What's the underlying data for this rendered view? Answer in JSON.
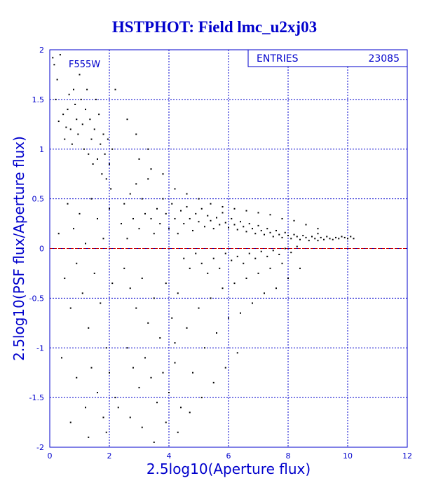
{
  "colors": {
    "axis": "#0000cc",
    "points": "#000000",
    "reference_line": "#cc0000",
    "background": "#ffffff"
  },
  "chart_data": {
    "type": "scatter",
    "title": "HSTPHOT: Field lmc_u2xj03",
    "xlabel": "2.5log10(Aperture flux)",
    "ylabel": "2.5log10(PSF flux/Aperture flux)",
    "xlim": [
      0,
      12
    ],
    "ylim": [
      -2,
      2
    ],
    "x_ticks": [
      "0",
      "2",
      "4",
      "6",
      "8",
      "10",
      "12"
    ],
    "y_ticks": [
      "-2",
      "-1.5",
      "-1",
      "-0.5",
      "0",
      "0.5",
      "1",
      "1.5",
      "2"
    ],
    "grid": true,
    "annotation": "F555W",
    "stats_box": {
      "label": "ENTRIES",
      "value": "23085"
    },
    "reference_line_y": 0,
    "series": [
      {
        "points": [
          [
            0.1,
            1.92
          ],
          [
            0.15,
            1.85
          ],
          [
            0.2,
            1.5
          ],
          [
            0.25,
            1.7
          ],
          [
            0.3,
            1.28
          ],
          [
            0.35,
            1.95
          ],
          [
            0.45,
            1.35
          ],
          [
            0.5,
            1.1
          ],
          [
            0.55,
            1.22
          ],
          [
            0.6,
            1.4
          ],
          [
            0.65,
            1.55
          ],
          [
            0.7,
            1.2
          ],
          [
            0.75,
            1.05
          ],
          [
            0.8,
            1.6
          ],
          [
            0.85,
            1.45
          ],
          [
            0.9,
            1.3
          ],
          [
            0.95,
            1.15
          ],
          [
            1.0,
            1.75
          ],
          [
            1.05,
            1.5
          ],
          [
            1.1,
            1.25
          ],
          [
            1.15,
            1.0
          ],
          [
            1.2,
            1.4
          ],
          [
            1.25,
            1.6
          ],
          [
            1.3,
            0.95
          ],
          [
            1.35,
            1.3
          ],
          [
            1.4,
            1.1
          ],
          [
            1.45,
            0.85
          ],
          [
            1.5,
            1.2
          ],
          [
            1.55,
            1.5
          ],
          [
            1.6,
            0.9
          ],
          [
            1.65,
            1.35
          ],
          [
            1.7,
            1.05
          ],
          [
            1.75,
            0.75
          ],
          [
            1.8,
            1.15
          ],
          [
            1.85,
            0.95
          ],
          [
            1.9,
            0.7
          ],
          [
            1.95,
            1.1
          ],
          [
            2.0,
            0.85
          ],
          [
            2.05,
            0.6
          ],
          [
            2.1,
            1.0
          ],
          [
            0.3,
            0.15
          ],
          [
            0.5,
            -0.3
          ],
          [
            0.6,
            0.45
          ],
          [
            0.7,
            -0.6
          ],
          [
            0.8,
            0.2
          ],
          [
            0.9,
            -0.15
          ],
          [
            1.0,
            0.35
          ],
          [
            1.1,
            -0.45
          ],
          [
            1.2,
            0.05
          ],
          [
            1.3,
            -0.8
          ],
          [
            1.4,
            0.5
          ],
          [
            1.5,
            -0.25
          ],
          [
            1.6,
            0.3
          ],
          [
            1.7,
            -0.55
          ],
          [
            1.8,
            0.1
          ],
          [
            1.9,
            -1.0
          ],
          [
            2.0,
            0.4
          ],
          [
            2.1,
            -0.35
          ],
          [
            0.4,
            -1.1
          ],
          [
            0.9,
            -1.3
          ],
          [
            1.2,
            -1.6
          ],
          [
            1.4,
            -1.2
          ],
          [
            1.6,
            -1.45
          ],
          [
            1.8,
            -1.7
          ],
          [
            2.0,
            -1.25
          ],
          [
            2.2,
            -1.5
          ],
          [
            0.7,
            -1.75
          ],
          [
            1.3,
            -1.9
          ],
          [
            1.9,
            -1.85
          ],
          [
            2.3,
            -1.6
          ],
          [
            2.4,
            0.25
          ],
          [
            2.5,
            0.45
          ],
          [
            2.6,
            0.1
          ],
          [
            2.7,
            0.55
          ],
          [
            2.8,
            0.3
          ],
          [
            2.9,
            0.65
          ],
          [
            3.0,
            0.2
          ],
          [
            3.1,
            0.5
          ],
          [
            3.2,
            0.35
          ],
          [
            3.3,
            0.7
          ],
          [
            2.5,
            -0.2
          ],
          [
            2.7,
            -0.4
          ],
          [
            2.9,
            -0.6
          ],
          [
            3.1,
            -0.3
          ],
          [
            3.3,
            -0.75
          ],
          [
            3.5,
            -0.5
          ],
          [
            3.7,
            -0.9
          ],
          [
            3.9,
            -0.35
          ],
          [
            4.1,
            -0.7
          ],
          [
            4.3,
            -0.45
          ],
          [
            2.6,
            -1.0
          ],
          [
            2.8,
            -1.2
          ],
          [
            3.0,
            -1.4
          ],
          [
            3.2,
            -1.1
          ],
          [
            3.4,
            -1.3
          ],
          [
            3.6,
            -1.55
          ],
          [
            3.8,
            -1.25
          ],
          [
            4.0,
            -1.45
          ],
          [
            4.2,
            -1.15
          ],
          [
            4.4,
            -1.6
          ],
          [
            2.7,
            -1.7
          ],
          [
            3.1,
            -1.8
          ],
          [
            3.5,
            -1.95
          ],
          [
            3.9,
            -1.75
          ],
          [
            4.3,
            -1.85
          ],
          [
            4.7,
            -1.65
          ],
          [
            5.1,
            -1.5
          ],
          [
            5.5,
            -1.35
          ],
          [
            5.9,
            -1.2
          ],
          [
            6.3,
            -1.05
          ],
          [
            3.4,
            0.3
          ],
          [
            3.5,
            0.15
          ],
          [
            3.6,
            0.4
          ],
          [
            3.7,
            0.25
          ],
          [
            3.8,
            0.5
          ],
          [
            3.9,
            0.35
          ],
          [
            4.0,
            0.2
          ],
          [
            4.1,
            0.45
          ],
          [
            4.2,
            0.3
          ],
          [
            4.3,
            0.15
          ],
          [
            4.4,
            0.38
          ],
          [
            4.5,
            0.25
          ],
          [
            4.6,
            0.42
          ],
          [
            4.7,
            0.3
          ],
          [
            4.8,
            0.18
          ],
          [
            4.9,
            0.35
          ],
          [
            5.0,
            0.27
          ],
          [
            5.1,
            0.4
          ],
          [
            5.2,
            0.22
          ],
          [
            5.3,
            0.33
          ],
          [
            5.4,
            0.28
          ],
          [
            5.5,
            0.2
          ],
          [
            5.6,
            0.31
          ],
          [
            5.7,
            0.24
          ],
          [
            5.8,
            0.36
          ],
          [
            5.9,
            0.26
          ],
          [
            6.0,
            0.21
          ],
          [
            6.1,
            0.3
          ],
          [
            6.2,
            0.24
          ],
          [
            6.3,
            0.19
          ],
          [
            6.4,
            0.27
          ],
          [
            6.5,
            0.22
          ],
          [
            6.6,
            0.17
          ],
          [
            6.7,
            0.25
          ],
          [
            6.8,
            0.2
          ],
          [
            6.9,
            0.15
          ],
          [
            7.0,
            0.23
          ],
          [
            7.1,
            0.18
          ],
          [
            7.2,
            0.14
          ],
          [
            7.3,
            0.2
          ],
          [
            7.4,
            0.16
          ],
          [
            7.5,
            0.12
          ],
          [
            7.6,
            0.18
          ],
          [
            7.7,
            0.14
          ],
          [
            7.8,
            0.11
          ],
          [
            7.9,
            0.16
          ],
          [
            8.0,
            0.13
          ],
          [
            8.1,
            0.1
          ],
          [
            8.2,
            0.14
          ],
          [
            8.3,
            0.12
          ],
          [
            8.4,
            0.09
          ],
          [
            8.5,
            0.13
          ],
          [
            8.6,
            0.11
          ],
          [
            8.7,
            0.08
          ],
          [
            8.8,
            0.12
          ],
          [
            8.9,
            0.1
          ],
          [
            9.0,
            0.08
          ],
          [
            9.1,
            0.11
          ],
          [
            9.2,
            0.09
          ],
          [
            9.3,
            0.12
          ],
          [
            9.4,
            0.1
          ],
          [
            9.5,
            0.09
          ],
          [
            9.6,
            0.11
          ],
          [
            9.7,
            0.1
          ],
          [
            9.8,
            0.12
          ],
          [
            9.9,
            0.11
          ],
          [
            10.0,
            0.1
          ],
          [
            10.1,
            0.12
          ],
          [
            10.2,
            0.1
          ],
          [
            9.0,
            0.15
          ],
          [
            4.5,
            -0.1
          ],
          [
            4.7,
            -0.2
          ],
          [
            4.9,
            -0.05
          ],
          [
            5.1,
            -0.15
          ],
          [
            5.3,
            -0.25
          ],
          [
            5.5,
            -0.1
          ],
          [
            5.7,
            -0.2
          ],
          [
            5.9,
            -0.05
          ],
          [
            6.1,
            -0.12
          ],
          [
            6.3,
            -0.08
          ],
          [
            6.5,
            -0.15
          ],
          [
            6.7,
            -0.05
          ],
          [
            6.9,
            -0.1
          ],
          [
            7.1,
            -0.03
          ],
          [
            7.3,
            -0.08
          ],
          [
            7.5,
            -0.02
          ],
          [
            7.7,
            -0.06
          ],
          [
            7.9,
            0.0
          ],
          [
            8.1,
            -0.04
          ],
          [
            8.3,
            0.02
          ],
          [
            4.2,
            -0.95
          ],
          [
            4.6,
            -0.8
          ],
          [
            5.0,
            -0.6
          ],
          [
            5.4,
            -0.5
          ],
          [
            5.8,
            -0.4
          ],
          [
            6.2,
            -0.35
          ],
          [
            6.6,
            -0.3
          ],
          [
            7.0,
            -0.25
          ],
          [
            7.4,
            -0.2
          ],
          [
            7.8,
            -0.15
          ],
          [
            3.0,
            0.9
          ],
          [
            3.4,
            0.8
          ],
          [
            3.8,
            0.75
          ],
          [
            4.2,
            0.6
          ],
          [
            4.6,
            0.55
          ],
          [
            5.0,
            0.5
          ],
          [
            5.4,
            0.45
          ],
          [
            5.8,
            0.42
          ],
          [
            6.2,
            0.4
          ],
          [
            6.6,
            0.38
          ],
          [
            7.0,
            0.36
          ],
          [
            7.4,
            0.34
          ],
          [
            7.8,
            0.3
          ],
          [
            8.2,
            0.28
          ],
          [
            8.6,
            0.24
          ],
          [
            9.0,
            0.2
          ],
          [
            2.6,
            1.3
          ],
          [
            2.9,
            1.15
          ],
          [
            3.3,
            1.0
          ],
          [
            2.2,
            1.6
          ],
          [
            5.6,
            -0.85
          ],
          [
            6.0,
            -0.7
          ],
          [
            6.4,
            -0.65
          ],
          [
            6.8,
            -0.55
          ],
          [
            7.2,
            -0.45
          ],
          [
            7.6,
            -0.4
          ],
          [
            8.0,
            -0.3
          ],
          [
            8.4,
            -0.2
          ],
          [
            5.2,
            -1.0
          ],
          [
            4.8,
            -1.25
          ]
        ]
      }
    ]
  }
}
